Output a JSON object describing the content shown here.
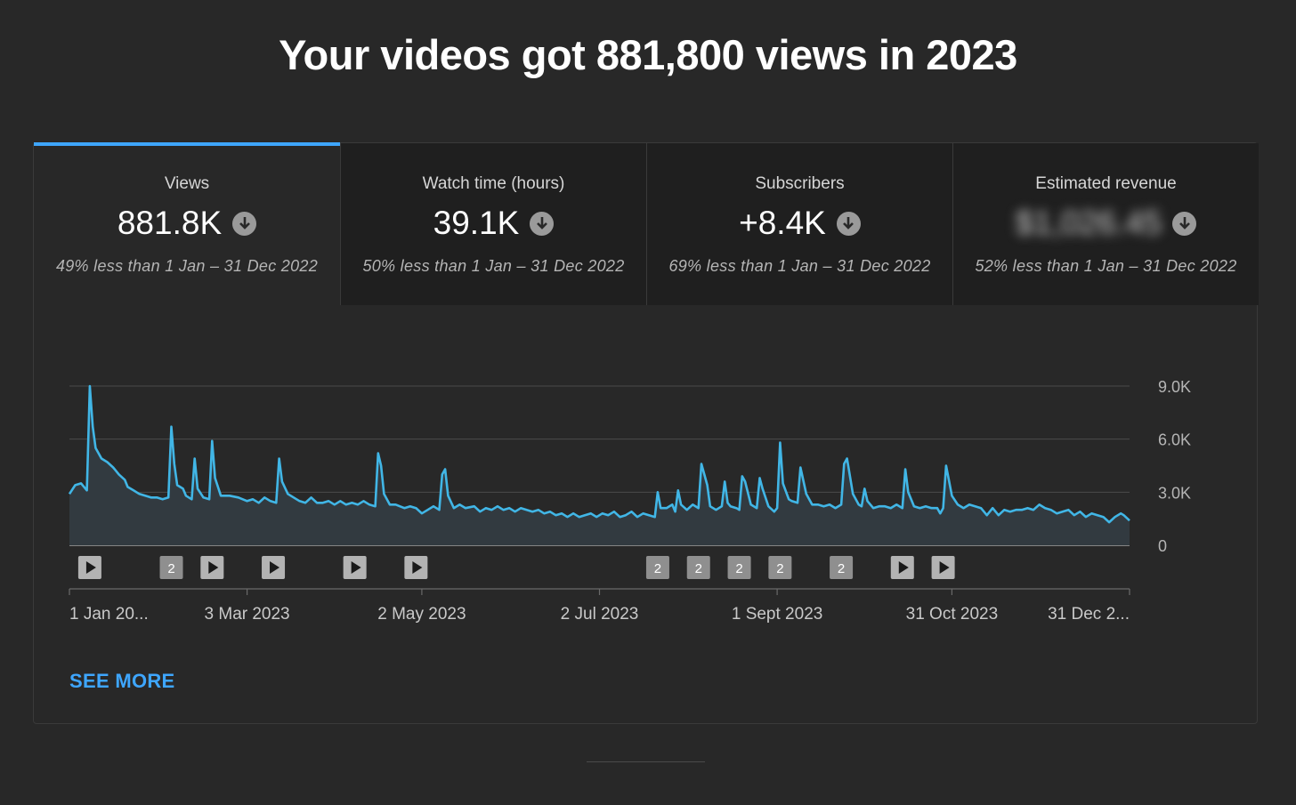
{
  "headline": "Your videos got 881,800 views in 2023",
  "tabs": [
    {
      "label": "Views",
      "value": "881.8K",
      "compare": "49% less than 1 Jan – 31 Dec 2022",
      "active": true
    },
    {
      "label": "Watch time (hours)",
      "value": "39.1K",
      "compare": "50% less than 1 Jan – 31 Dec 2022",
      "active": false
    },
    {
      "label": "Subscribers",
      "value": "+8.4K",
      "compare": "69% less than 1 Jan – 31 Dec 2022",
      "active": false
    },
    {
      "label": "Estimated revenue",
      "value": "$1,026.45",
      "value_blurred": true,
      "compare": "52% less than 1 Jan – 31 Dec 2022",
      "active": false
    }
  ],
  "icons": {
    "trend": "arrow-down-circle-icon",
    "publish": "play-icon"
  },
  "colors": {
    "accent": "#3ea6ff",
    "line": "#41b6e6",
    "background": "#282828",
    "inactive_tab": "#1f1f1f"
  },
  "chart_data": {
    "type": "area",
    "ylim": [
      0,
      9000
    ],
    "ytick_values": [
      0,
      3000,
      6000,
      9000
    ],
    "ytick_labels": [
      "0",
      "3.0K",
      "6.0K",
      "9.0K"
    ],
    "x_tick_days": [
      0,
      61,
      121,
      182,
      243,
      303,
      364
    ],
    "x_tick_labels": [
      "1 Jan 20...",
      "3 Mar 2023",
      "2 May 2023",
      "2 Jul 2023",
      "1 Sept 2023",
      "31 Oct 2023",
      "31 Dec 2..."
    ],
    "x_unit": "day of 2023",
    "y_unit": "views",
    "series": [
      {
        "name": "Views",
        "points": [
          [
            0,
            2900
          ],
          [
            2,
            3400
          ],
          [
            4,
            3500
          ],
          [
            6,
            3100
          ],
          [
            7,
            9000
          ],
          [
            8,
            6700
          ],
          [
            9,
            5500
          ],
          [
            11,
            4900
          ],
          [
            13,
            4700
          ],
          [
            15,
            4400
          ],
          [
            17,
            4000
          ],
          [
            19,
            3700
          ],
          [
            20,
            3300
          ],
          [
            22,
            3100
          ],
          [
            24,
            2900
          ],
          [
            26,
            2800
          ],
          [
            28,
            2700
          ],
          [
            30,
            2700
          ],
          [
            32,
            2600
          ],
          [
            34,
            2700
          ],
          [
            35,
            6700
          ],
          [
            36,
            4600
          ],
          [
            37,
            3400
          ],
          [
            39,
            3200
          ],
          [
            40,
            2800
          ],
          [
            42,
            2600
          ],
          [
            43,
            4900
          ],
          [
            44,
            3200
          ],
          [
            46,
            2700
          ],
          [
            48,
            2600
          ],
          [
            49,
            5900
          ],
          [
            50,
            3800
          ],
          [
            52,
            2800
          ],
          [
            55,
            2800
          ],
          [
            58,
            2700
          ],
          [
            61,
            2500
          ],
          [
            63,
            2600
          ],
          [
            65,
            2400
          ],
          [
            67,
            2700
          ],
          [
            69,
            2500
          ],
          [
            71,
            2400
          ],
          [
            72,
            4900
          ],
          [
            73,
            3600
          ],
          [
            75,
            2900
          ],
          [
            77,
            2700
          ],
          [
            79,
            2500
          ],
          [
            81,
            2400
          ],
          [
            83,
            2700
          ],
          [
            85,
            2400
          ],
          [
            87,
            2400
          ],
          [
            89,
            2500
          ],
          [
            91,
            2300
          ],
          [
            93,
            2500
          ],
          [
            95,
            2300
          ],
          [
            97,
            2400
          ],
          [
            99,
            2300
          ],
          [
            101,
            2500
          ],
          [
            103,
            2300
          ],
          [
            105,
            2200
          ],
          [
            106,
            5200
          ],
          [
            107,
            4500
          ],
          [
            108,
            2900
          ],
          [
            110,
            2300
          ],
          [
            112,
            2300
          ],
          [
            115,
            2100
          ],
          [
            117,
            2200
          ],
          [
            119,
            2100
          ],
          [
            121,
            1800
          ],
          [
            123,
            2000
          ],
          [
            125,
            2200
          ],
          [
            127,
            2000
          ],
          [
            128,
            4000
          ],
          [
            129,
            4300
          ],
          [
            130,
            2800
          ],
          [
            132,
            2100
          ],
          [
            134,
            2300
          ],
          [
            136,
            2100
          ],
          [
            139,
            2200
          ],
          [
            141,
            1900
          ],
          [
            143,
            2100
          ],
          [
            145,
            2000
          ],
          [
            147,
            2200
          ],
          [
            149,
            2000
          ],
          [
            151,
            2100
          ],
          [
            153,
            1900
          ],
          [
            155,
            2100
          ],
          [
            157,
            2000
          ],
          [
            159,
            1900
          ],
          [
            161,
            2000
          ],
          [
            163,
            1800
          ],
          [
            165,
            1900
          ],
          [
            167,
            1700
          ],
          [
            169,
            1800
          ],
          [
            171,
            1600
          ],
          [
            173,
            1800
          ],
          [
            175,
            1600
          ],
          [
            177,
            1700
          ],
          [
            179,
            1800
          ],
          [
            181,
            1600
          ],
          [
            183,
            1800
          ],
          [
            185,
            1700
          ],
          [
            187,
            1900
          ],
          [
            189,
            1600
          ],
          [
            191,
            1700
          ],
          [
            193,
            1900
          ],
          [
            195,
            1600
          ],
          [
            197,
            1800
          ],
          [
            199,
            1700
          ],
          [
            201,
            1600
          ],
          [
            202,
            3000
          ],
          [
            203,
            2100
          ],
          [
            205,
            2100
          ],
          [
            207,
            2300
          ],
          [
            208,
            1900
          ],
          [
            209,
            3100
          ],
          [
            210,
            2300
          ],
          [
            212,
            2000
          ],
          [
            214,
            2300
          ],
          [
            216,
            2100
          ],
          [
            217,
            4600
          ],
          [
            219,
            3400
          ],
          [
            220,
            2200
          ],
          [
            222,
            2000
          ],
          [
            224,
            2200
          ],
          [
            225,
            3600
          ],
          [
            226,
            2400
          ],
          [
            227,
            2200
          ],
          [
            229,
            2100
          ],
          [
            230,
            2000
          ],
          [
            231,
            3900
          ],
          [
            232,
            3600
          ],
          [
            234,
            2300
          ],
          [
            236,
            2100
          ],
          [
            237,
            3800
          ],
          [
            238,
            3200
          ],
          [
            240,
            2200
          ],
          [
            242,
            1900
          ],
          [
            243,
            2100
          ],
          [
            244,
            5800
          ],
          [
            245,
            3500
          ],
          [
            247,
            2600
          ],
          [
            248,
            2500
          ],
          [
            250,
            2400
          ],
          [
            251,
            4400
          ],
          [
            253,
            2900
          ],
          [
            255,
            2300
          ],
          [
            257,
            2300
          ],
          [
            259,
            2200
          ],
          [
            261,
            2300
          ],
          [
            263,
            2100
          ],
          [
            265,
            2300
          ],
          [
            266,
            4600
          ],
          [
            267,
            4900
          ],
          [
            269,
            2900
          ],
          [
            271,
            2300
          ],
          [
            272,
            2200
          ],
          [
            273,
            3200
          ],
          [
            274,
            2500
          ],
          [
            276,
            2100
          ],
          [
            278,
            2200
          ],
          [
            280,
            2200
          ],
          [
            282,
            2100
          ],
          [
            284,
            2300
          ],
          [
            286,
            2100
          ],
          [
            287,
            4300
          ],
          [
            288,
            3000
          ],
          [
            290,
            2200
          ],
          [
            292,
            2100
          ],
          [
            294,
            2200
          ],
          [
            296,
            2100
          ],
          [
            298,
            2100
          ],
          [
            299,
            1800
          ],
          [
            300,
            2100
          ],
          [
            301,
            4500
          ],
          [
            303,
            2800
          ],
          [
            305,
            2300
          ],
          [
            307,
            2100
          ],
          [
            309,
            2300
          ],
          [
            311,
            2200
          ],
          [
            313,
            2100
          ],
          [
            315,
            1700
          ],
          [
            317,
            2100
          ],
          [
            319,
            1700
          ],
          [
            321,
            2000
          ],
          [
            323,
            1900
          ],
          [
            325,
            2000
          ],
          [
            327,
            2000
          ],
          [
            329,
            2100
          ],
          [
            331,
            2000
          ],
          [
            333,
            2300
          ],
          [
            335,
            2100
          ],
          [
            337,
            2000
          ],
          [
            339,
            1800
          ],
          [
            341,
            1900
          ],
          [
            343,
            2000
          ],
          [
            345,
            1700
          ],
          [
            347,
            1900
          ],
          [
            349,
            1600
          ],
          [
            351,
            1800
          ],
          [
            353,
            1700
          ],
          [
            355,
            1600
          ],
          [
            357,
            1300
          ],
          [
            359,
            1600
          ],
          [
            361,
            1800
          ],
          [
            362,
            1700
          ],
          [
            364,
            1400
          ]
        ]
      }
    ],
    "annotations": [
      {
        "day": 7,
        "kind": "publish"
      },
      {
        "day": 35,
        "kind": "count",
        "label": "2"
      },
      {
        "day": 49,
        "kind": "publish"
      },
      {
        "day": 70,
        "kind": "publish"
      },
      {
        "day": 98,
        "kind": "publish"
      },
      {
        "day": 119,
        "kind": "publish"
      },
      {
        "day": 202,
        "kind": "count",
        "label": "2"
      },
      {
        "day": 216,
        "kind": "count",
        "label": "2"
      },
      {
        "day": 230,
        "kind": "count",
        "label": "2"
      },
      {
        "day": 244,
        "kind": "count",
        "label": "2"
      },
      {
        "day": 265,
        "kind": "count",
        "label": "2"
      },
      {
        "day": 286,
        "kind": "publish"
      },
      {
        "day": 300,
        "kind": "publish"
      }
    ],
    "grid": true
  },
  "see_more": "SEE MORE"
}
